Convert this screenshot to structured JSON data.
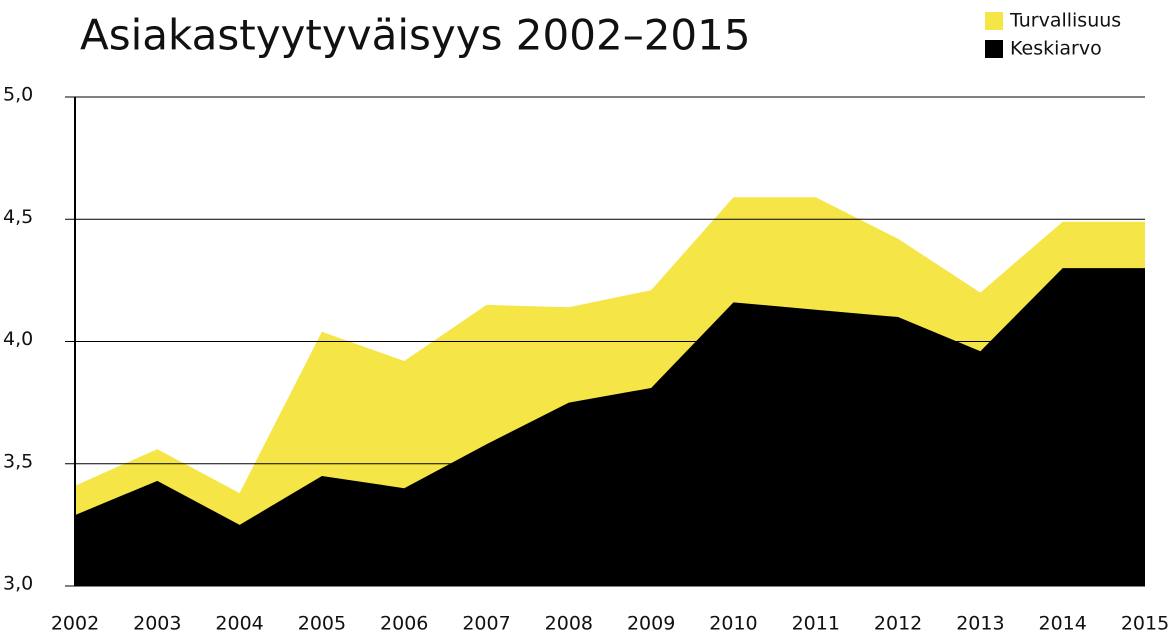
{
  "chart_data": {
    "type": "area",
    "title": "Asiakastyytyväisyys 2002–2015",
    "categories": [
      "2002",
      "2003",
      "2004",
      "2005",
      "2006",
      "2007",
      "2008",
      "2009",
      "2010",
      "2011",
      "2012",
      "2013",
      "2014",
      "2015"
    ],
    "series": [
      {
        "name": "Turvallisuus",
        "color": "#f5e547",
        "values": [
          3.41,
          3.56,
          3.38,
          4.04,
          3.92,
          4.15,
          4.14,
          4.21,
          4.59,
          4.59,
          4.42,
          4.2,
          4.49,
          4.49
        ]
      },
      {
        "name": "Keskiarvo",
        "color": "#000000",
        "values": [
          3.29,
          3.43,
          3.25,
          3.45,
          3.4,
          3.58,
          3.75,
          3.81,
          4.16,
          4.13,
          4.1,
          3.96,
          4.3,
          4.3
        ]
      }
    ],
    "ylim": [
      3,
      5
    ],
    "yticks": [
      {
        "value": 3,
        "label": "3,0"
      },
      {
        "value": 3.5,
        "label": "3,5"
      },
      {
        "value": 4,
        "label": "4,0"
      },
      {
        "value": 4.5,
        "label": "4,5"
      },
      {
        "value": 5,
        "label": "5,0"
      }
    ],
    "grid": true,
    "legend": "top-right"
  }
}
